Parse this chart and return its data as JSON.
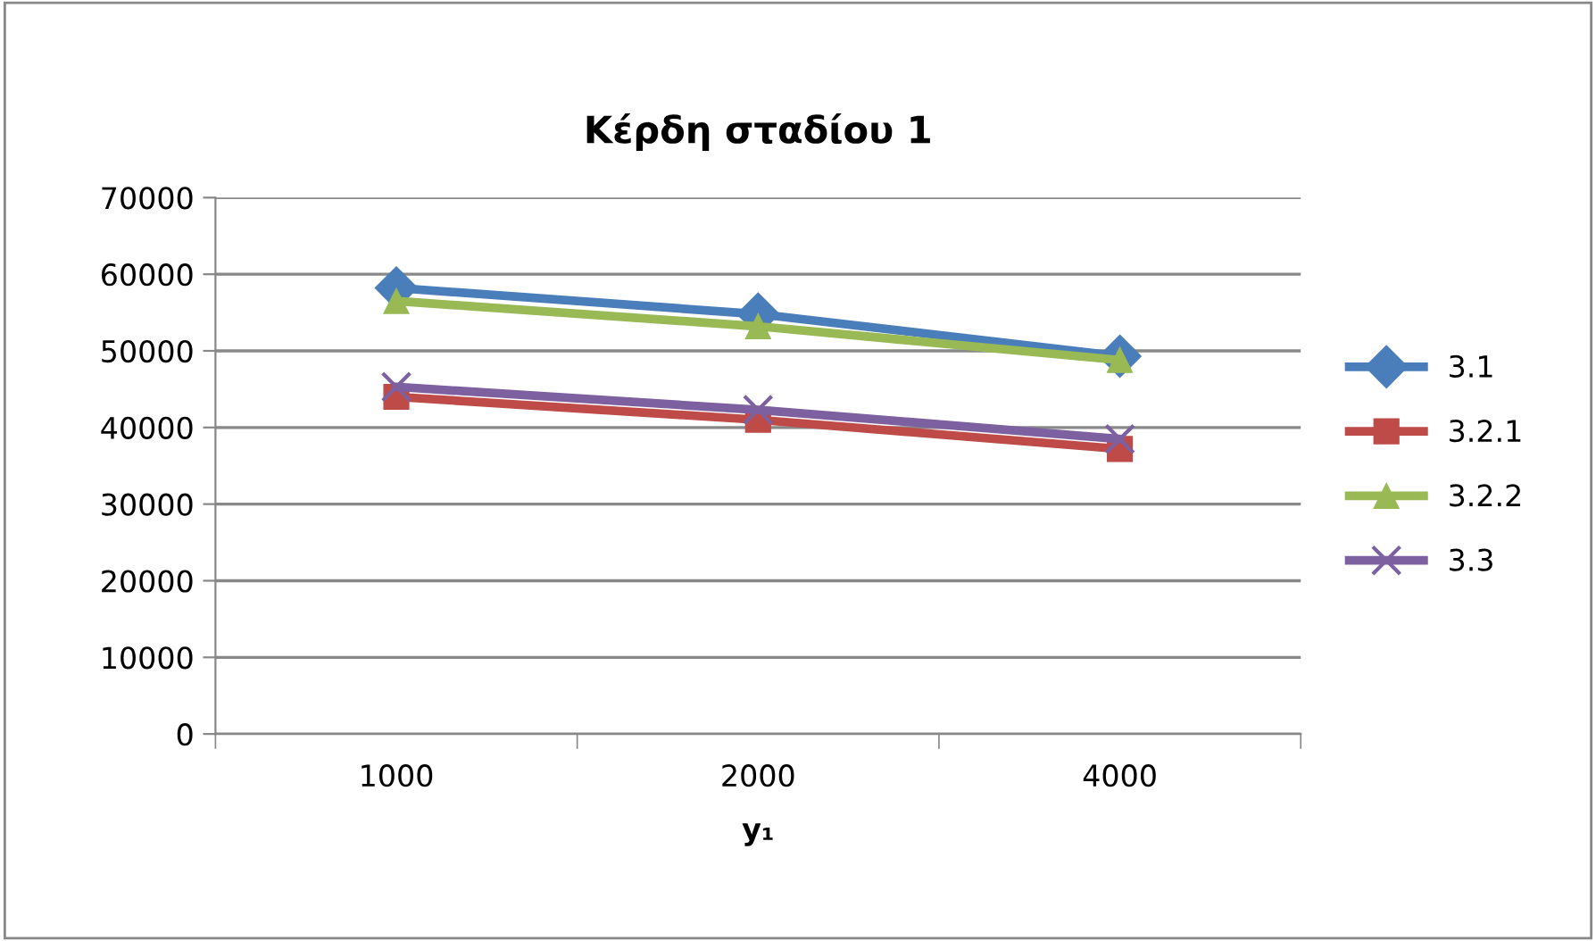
{
  "chart_data": {
    "type": "line",
    "title": "Κέρδη σταδίου 1",
    "xlabel": "y₁",
    "categories": [
      "1000",
      "2000",
      "4000"
    ],
    "series": [
      {
        "name": "3.1",
        "color": "#4a7ebb",
        "marker": "diamond",
        "values": [
          58200,
          54800,
          49300
        ]
      },
      {
        "name": "3.2.1",
        "color": "#be4b48",
        "marker": "square",
        "values": [
          44000,
          41000,
          37200
        ]
      },
      {
        "name": "3.2.2",
        "color": "#98b954",
        "marker": "triangle",
        "values": [
          56500,
          53200,
          48800
        ]
      },
      {
        "name": "3.3",
        "color": "#7d60a0",
        "marker": "cross",
        "values": [
          45300,
          42300,
          38500
        ]
      }
    ],
    "ylim": [
      0,
      70000
    ],
    "yticks": [
      0,
      10000,
      20000,
      30000,
      40000,
      50000,
      60000,
      70000
    ],
    "grid": "y",
    "legend": "right",
    "line_style": "solid"
  }
}
